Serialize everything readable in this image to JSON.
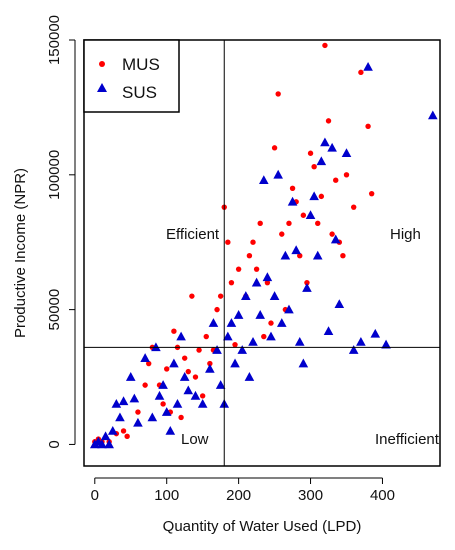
{
  "chart_data": {
    "type": "scatter",
    "xlabel": "Quantity of Water Used (LPD)",
    "ylabel": "Productive Income (NPR)",
    "xlim": [
      -15,
      480
    ],
    "ylim": [
      -8000,
      150000
    ],
    "xticks": [
      0,
      100,
      200,
      300,
      400
    ],
    "yticks": [
      0,
      50000,
      100000,
      150000
    ],
    "x_tick_labels": [
      "0",
      "100",
      "200",
      "300",
      "400"
    ],
    "y_tick_labels": [
      "0",
      "50000",
      "100000",
      "150000"
    ],
    "grid": false,
    "legend_position": "top-left",
    "reference_lines": {
      "vertical_x": 180,
      "horizontal_y": 36000
    },
    "annotations": {
      "top_left": "Efficient",
      "top_right": "High",
      "bottom_left": "Low",
      "bottom_right": "Inefficient"
    },
    "series": [
      {
        "name": "MUS",
        "color": "#ff0000",
        "marker": "circle",
        "points": [
          [
            0,
            1000
          ],
          [
            5,
            2000
          ],
          [
            10,
            1000
          ],
          [
            20,
            1000
          ],
          [
            30,
            4000
          ],
          [
            40,
            5000
          ],
          [
            45,
            3000
          ],
          [
            60,
            12000
          ],
          [
            70,
            22000
          ],
          [
            75,
            30000
          ],
          [
            80,
            36000
          ],
          [
            90,
            22000
          ],
          [
            95,
            15000
          ],
          [
            100,
            28000
          ],
          [
            105,
            12000
          ],
          [
            110,
            42000
          ],
          [
            115,
            36000
          ],
          [
            120,
            10000
          ],
          [
            125,
            32000
          ],
          [
            130,
            27000
          ],
          [
            135,
            55000
          ],
          [
            140,
            25000
          ],
          [
            145,
            35000
          ],
          [
            150,
            18000
          ],
          [
            155,
            40000
          ],
          [
            160,
            30000
          ],
          [
            165,
            35000
          ],
          [
            170,
            50000
          ],
          [
            175,
            55000
          ],
          [
            180,
            88000
          ],
          [
            185,
            75000
          ],
          [
            190,
            60000
          ],
          [
            195,
            37000
          ],
          [
            200,
            65000
          ],
          [
            210,
            55000
          ],
          [
            215,
            70000
          ],
          [
            220,
            75000
          ],
          [
            225,
            65000
          ],
          [
            230,
            82000
          ],
          [
            235,
            40000
          ],
          [
            240,
            60000
          ],
          [
            245,
            45000
          ],
          [
            250,
            110000
          ],
          [
            255,
            130000
          ],
          [
            260,
            78000
          ],
          [
            265,
            50000
          ],
          [
            270,
            82000
          ],
          [
            275,
            95000
          ],
          [
            280,
            90000
          ],
          [
            285,
            70000
          ],
          [
            290,
            85000
          ],
          [
            295,
            60000
          ],
          [
            300,
            108000
          ],
          [
            305,
            103000
          ],
          [
            310,
            82000
          ],
          [
            315,
            92000
          ],
          [
            320,
            148000
          ],
          [
            325,
            120000
          ],
          [
            330,
            78000
          ],
          [
            335,
            98000
          ],
          [
            340,
            75000
          ],
          [
            345,
            70000
          ],
          [
            350,
            100000
          ],
          [
            360,
            88000
          ],
          [
            370,
            138000
          ],
          [
            380,
            118000
          ],
          [
            385,
            93000
          ]
        ]
      },
      {
        "name": "SUS",
        "color": "#0000cc",
        "marker": "triangle",
        "points": [
          [
            0,
            0
          ],
          [
            5,
            1000
          ],
          [
            10,
            0
          ],
          [
            15,
            3000
          ],
          [
            20,
            0
          ],
          [
            25,
            5000
          ],
          [
            30,
            15000
          ],
          [
            35,
            10000
          ],
          [
            40,
            16000
          ],
          [
            50,
            25000
          ],
          [
            55,
            17000
          ],
          [
            60,
            8000
          ],
          [
            70,
            32000
          ],
          [
            80,
            10000
          ],
          [
            85,
            36000
          ],
          [
            90,
            18000
          ],
          [
            95,
            22000
          ],
          [
            100,
            12000
          ],
          [
            105,
            5000
          ],
          [
            110,
            30000
          ],
          [
            115,
            15000
          ],
          [
            120,
            40000
          ],
          [
            125,
            25000
          ],
          [
            130,
            20000
          ],
          [
            140,
            18000
          ],
          [
            150,
            15000
          ],
          [
            160,
            28000
          ],
          [
            165,
            45000
          ],
          [
            170,
            35000
          ],
          [
            175,
            22000
          ],
          [
            180,
            15000
          ],
          [
            185,
            40000
          ],
          [
            190,
            45000
          ],
          [
            195,
            30000
          ],
          [
            200,
            48000
          ],
          [
            205,
            35000
          ],
          [
            210,
            55000
          ],
          [
            215,
            25000
          ],
          [
            220,
            38000
          ],
          [
            225,
            60000
          ],
          [
            230,
            48000
          ],
          [
            235,
            98000
          ],
          [
            240,
            62000
          ],
          [
            245,
            40000
          ],
          [
            250,
            55000
          ],
          [
            255,
            100000
          ],
          [
            260,
            45000
          ],
          [
            265,
            70000
          ],
          [
            270,
            50000
          ],
          [
            275,
            90000
          ],
          [
            280,
            72000
          ],
          [
            285,
            38000
          ],
          [
            290,
            30000
          ],
          [
            295,
            58000
          ],
          [
            300,
            85000
          ],
          [
            305,
            92000
          ],
          [
            310,
            70000
          ],
          [
            315,
            105000
          ],
          [
            320,
            112000
          ],
          [
            325,
            42000
          ],
          [
            330,
            110000
          ],
          [
            335,
            76000
          ],
          [
            340,
            52000
          ],
          [
            350,
            108000
          ],
          [
            360,
            35000
          ],
          [
            370,
            38000
          ],
          [
            380,
            140000
          ],
          [
            390,
            41000
          ],
          [
            405,
            37000
          ],
          [
            470,
            122000
          ]
        ]
      }
    ]
  }
}
